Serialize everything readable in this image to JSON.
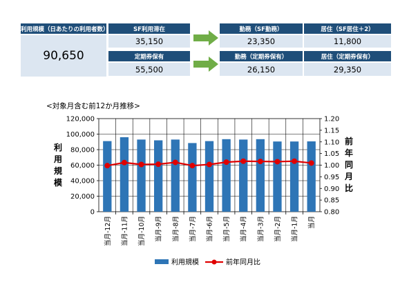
{
  "summary": {
    "left_header": "利用規模（日あたりの利用者数）",
    "left_value": "90,650",
    "sf_stay_header": "SF利用滞在",
    "sf_stay_value": "35,150",
    "commuter_pass_header": "定期券保有",
    "commuter_pass_value": "55,500",
    "work_sf_header": "勤務（SF勤務）",
    "work_sf_value": "23,350",
    "resident_sf_header": "居住（SF居住＋2）",
    "resident_sf_value": "11,800",
    "work_pass_header": "勤務（定期券保有）",
    "work_pass_value": "26,150",
    "resident_pass_header": "居住（定期券保有）",
    "resident_pass_value": "29,350",
    "header_color": "#1f4e79",
    "value_bg_color": "#dce6f1",
    "arrow_color": "#70ad47"
  },
  "chart_data": {
    "type": "bar",
    "title": "<対象月含む前12か月推移>",
    "categories": [
      "当月-12月",
      "当月-11月",
      "当月-10月",
      "当月-9月",
      "当月-8月",
      "当月-7月",
      "当月-6月",
      "当月-5月",
      "当月-4月",
      "当月-3月",
      "当月-2月",
      "当月-1月",
      "当月"
    ],
    "series": [
      {
        "name": "利用規模",
        "type": "bar",
        "axis": "left",
        "color": "#2e75b6",
        "values": [
          91000,
          96000,
          93000,
          92000,
          93000,
          88500,
          91000,
          93500,
          93000,
          93500,
          90500,
          90500,
          90650
        ]
      },
      {
        "name": "前年同月比",
        "type": "line",
        "axis": "right",
        "color": "#e00000",
        "values": [
          0.998,
          1.011,
          1.003,
          1.004,
          1.012,
          0.998,
          1.003,
          1.013,
          1.017,
          1.016,
          1.015,
          1.017,
          1.009
        ]
      }
    ],
    "ylabel": "利用規模",
    "y2label": "前年同月比",
    "ylim": [
      0,
      120000
    ],
    "yticks": [
      "0",
      "20,000",
      "40,000",
      "60,000",
      "80,000",
      "100,000",
      "120,000"
    ],
    "y2lim": [
      0.8,
      1.2
    ],
    "y2ticks": [
      "0.80",
      "0.85",
      "0.90",
      "0.95",
      "1.00",
      "1.05",
      "1.10",
      "1.15",
      "1.20"
    ],
    "grid": true,
    "legend_position": "bottom"
  }
}
